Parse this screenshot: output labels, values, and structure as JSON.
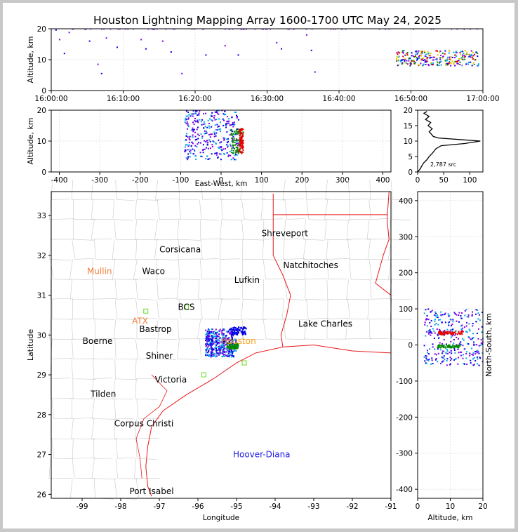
{
  "title": "Houston Lightning Mapping Array 1600-1700 UTC May 24, 2025",
  "colors": {
    "background": "#ffffff",
    "border": "#c8c8c8",
    "county": "#c8c8c8",
    "state": "#e8191c",
    "coast": "#e8191c"
  },
  "chart_data": [
    {
      "panel": "time-altitude",
      "type": "scatter",
      "ylabel": "Altitude, km",
      "ylim": [
        0,
        20
      ],
      "yticks": [
        0,
        10,
        20
      ],
      "xlim": [
        "16:00:00",
        "17:00:00"
      ],
      "xticks": [
        "16:00:00",
        "16:10:00",
        "16:20:00",
        "16:30:00",
        "16:40:00",
        "16:50:00",
        "17:00:00"
      ],
      "grid": true,
      "points": [
        {
          "t": "16:00:40",
          "alt": 19.6
        },
        {
          "t": "16:01:10",
          "alt": 16.5
        },
        {
          "t": "16:01:50",
          "alt": 12.0
        },
        {
          "t": "16:02:30",
          "alt": 18.8
        },
        {
          "t": "16:05:20",
          "alt": 16.0
        },
        {
          "t": "16:06:30",
          "alt": 8.5
        },
        {
          "t": "16:07:00",
          "alt": 5.5
        },
        {
          "t": "16:07:40",
          "alt": 17.0
        },
        {
          "t": "16:09:10",
          "alt": 14.0
        },
        {
          "t": "16:12:30",
          "alt": 16.5
        },
        {
          "t": "16:13:10",
          "alt": 13.5
        },
        {
          "t": "16:15:30",
          "alt": 16.0
        },
        {
          "t": "16:16:40",
          "alt": 12.5
        },
        {
          "t": "16:18:10",
          "alt": 5.5
        },
        {
          "t": "16:21:30",
          "alt": 11.5
        },
        {
          "t": "16:24:10",
          "alt": 14.5
        },
        {
          "t": "16:26:00",
          "alt": 11.5
        },
        {
          "t": "16:31:20",
          "alt": 15.5
        },
        {
          "t": "16:32:00",
          "alt": 13.5
        },
        {
          "t": "16:35:30",
          "alt": 18.0
        },
        {
          "t": "16:36:10",
          "alt": 13.0
        },
        {
          "t": "16:36:40",
          "alt": 6.0
        }
      ],
      "cluster": {
        "t_start": "16:48:00",
        "t_end": "16:59:30",
        "alt_min": 8,
        "alt_max": 13
      }
    },
    {
      "panel": "east-west-altitude",
      "type": "scatter",
      "xlabel": "East-West, km",
      "ylabel": "Altitude, km",
      "xlim": [
        -420,
        420
      ],
      "xticks": [
        -400,
        -300,
        -200,
        -100,
        0,
        100,
        200,
        300,
        400
      ],
      "ylim": [
        0,
        20
      ],
      "yticks": [
        0,
        10,
        20
      ],
      "grid": true,
      "clusters": [
        {
          "x_min": -90,
          "x_max": 45,
          "alt_min": 4,
          "alt_max": 20,
          "color": "#7a00e6"
        },
        {
          "x_min": 25,
          "x_max": 55,
          "alt_min": 6,
          "alt_max": 14,
          "color": "#008a00"
        },
        {
          "x_min": 45,
          "x_max": 55,
          "alt_min": 6,
          "alt_max": 14,
          "color": "#e60000"
        }
      ]
    },
    {
      "panel": "altitude-histogram",
      "type": "line",
      "xlim": [
        0,
        125
      ],
      "xticks": [
        0,
        50,
        100
      ],
      "ylim": [
        0,
        20
      ],
      "yticks": [
        0,
        5,
        10,
        15,
        20
      ],
      "annotation": "2,787 src",
      "profile": [
        [
          0,
          0
        ],
        [
          5,
          1
        ],
        [
          8,
          2
        ],
        [
          12,
          3
        ],
        [
          18,
          4
        ],
        [
          22,
          5
        ],
        [
          28,
          6
        ],
        [
          35,
          7.5
        ],
        [
          45,
          8.5
        ],
        [
          90,
          9.2
        ],
        [
          120,
          10
        ],
        [
          80,
          10.5
        ],
        [
          40,
          11
        ],
        [
          30,
          11.5
        ],
        [
          25,
          12.5
        ],
        [
          22,
          13
        ],
        [
          28,
          14
        ],
        [
          20,
          15
        ],
        [
          25,
          16
        ],
        [
          15,
          17
        ],
        [
          22,
          18
        ],
        [
          12,
          19
        ],
        [
          18,
          19.6
        ]
      ]
    },
    {
      "panel": "plan-view",
      "type": "scatter",
      "xlabel": "Longitude",
      "ylabel": "Latitude",
      "xlim": [
        -99.8,
        -91
      ],
      "ylim": [
        25.9,
        33.6
      ],
      "xticks": [
        -99,
        -98,
        -97,
        -96,
        -95,
        -94,
        -93,
        -92,
        -91
      ],
      "yticks": [
        26,
        27,
        28,
        29,
        30,
        31,
        32,
        33
      ],
      "cities": [
        {
          "name": "Shreveport",
          "lon": -93.75,
          "lat": 32.55,
          "color": "#000000"
        },
        {
          "name": "Corsicana",
          "lon": -96.46,
          "lat": 32.15,
          "color": "#000000"
        },
        {
          "name": "Natchitoches",
          "lon": -93.08,
          "lat": 31.75,
          "color": "#000000"
        },
        {
          "name": "Mullin",
          "lon": -98.55,
          "lat": 31.6,
          "color": "#f47e3e"
        },
        {
          "name": "Waco",
          "lon": -97.15,
          "lat": 31.6,
          "color": "#000000"
        },
        {
          "name": "Lufkin",
          "lon": -94.73,
          "lat": 31.38,
          "color": "#000000"
        },
        {
          "name": "BCS",
          "lon": -96.3,
          "lat": 30.7,
          "color": "#000000"
        },
        {
          "name": "ATX",
          "lon": -97.5,
          "lat": 30.35,
          "color": "#f47e3e"
        },
        {
          "name": "Bastrop",
          "lon": -97.1,
          "lat": 30.15,
          "color": "#000000"
        },
        {
          "name": "Lake Charles",
          "lon": -92.7,
          "lat": 30.28,
          "color": "#000000"
        },
        {
          "name": "Boerne",
          "lon": -98.6,
          "lat": 29.85,
          "color": "#000000"
        },
        {
          "name": "Houston",
          "lon": -94.95,
          "lat": 29.85,
          "color": "#f9a11b"
        },
        {
          "name": "Shiner",
          "lon": -97.0,
          "lat": 29.48,
          "color": "#000000"
        },
        {
          "name": "Victoria",
          "lon": -96.7,
          "lat": 28.88,
          "color": "#000000"
        },
        {
          "name": "Tilden",
          "lon": -98.45,
          "lat": 28.52,
          "color": "#000000"
        },
        {
          "name": "Corpus Christi",
          "lon": -97.4,
          "lat": 27.78,
          "color": "#000000"
        },
        {
          "name": "Hoover-Diana",
          "lon": -94.35,
          "lat": 27.0,
          "color": "#1c1ce6"
        },
        {
          "name": "Port Isabel",
          "lon": -97.2,
          "lat": 26.08,
          "color": "#000000"
        }
      ],
      "stations": [
        {
          "lon": -97.35,
          "lat": 30.6
        },
        {
          "lon": -96.3,
          "lat": 30.7
        },
        {
          "lon": -95.85,
          "lat": 29.0
        },
        {
          "lon": -94.8,
          "lat": 29.3
        }
      ],
      "clusters": [
        {
          "lon_min": -95.8,
          "lon_max": -95.0,
          "lat_min": 29.45,
          "lat_max": 30.15,
          "color": "#7a00e6"
        },
        {
          "lon_min": -95.15,
          "lon_max": -94.75,
          "lat_min": 30.0,
          "lat_max": 30.2,
          "color": "#0000e6"
        },
        {
          "lon_min": -95.25,
          "lon_max": -94.95,
          "lat_min": 29.65,
          "lat_max": 29.8,
          "color": "#008a00"
        }
      ]
    },
    {
      "panel": "altitude-north-south",
      "type": "scatter",
      "xlabel": "Altitude, km",
      "ylabel": "North-South, km",
      "xlim": [
        0,
        20
      ],
      "xticks": [
        0,
        10,
        20
      ],
      "ylim": [
        -425,
        425
      ],
      "yticks": [
        -400,
        -300,
        -200,
        -100,
        0,
        100,
        200,
        300,
        400
      ],
      "grid": true,
      "clusters": [
        {
          "alt_min": 2,
          "alt_max": 20,
          "ns_min": -60,
          "ns_max": 100,
          "color": "#7a00e6"
        },
        {
          "alt_min": 6,
          "alt_max": 14,
          "ns_min": 28,
          "ns_max": 38,
          "color": "#e60000"
        },
        {
          "alt_min": 6,
          "alt_max": 13,
          "ns_min": -8,
          "ns_max": 0,
          "color": "#008a00"
        }
      ]
    }
  ]
}
